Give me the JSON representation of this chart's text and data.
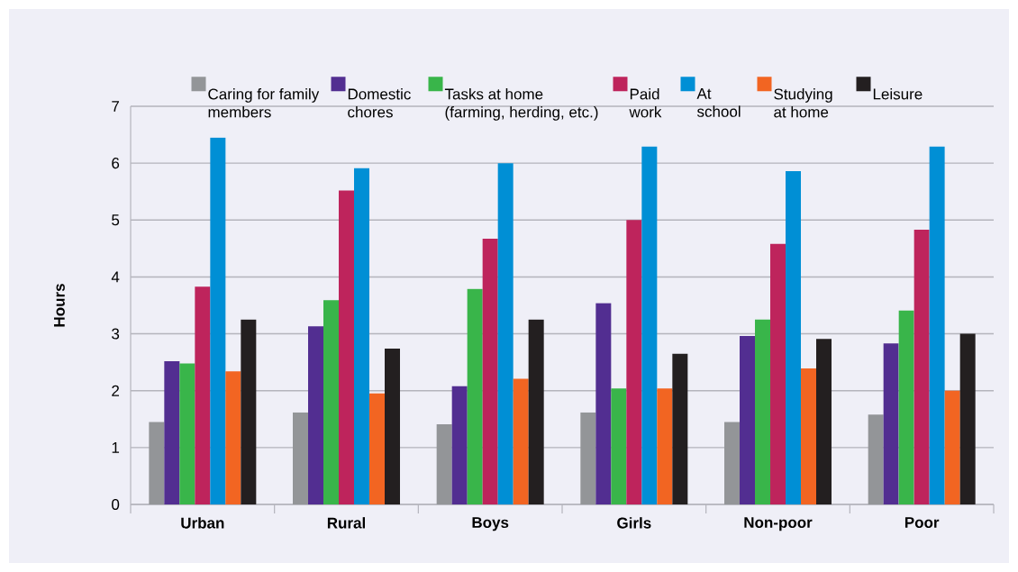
{
  "chart_data": {
    "type": "bar",
    "ylabel": "Hours",
    "categories": [
      "Urban",
      "Rural",
      "Boys",
      "Girls",
      "Non-poor",
      "Poor"
    ],
    "series": [
      {
        "name": "Caring for family members",
        "color": "#939598",
        "values": [
          1.45,
          1.62,
          1.41,
          1.62,
          1.45,
          1.58
        ]
      },
      {
        "name": "Domestic chores",
        "color": "#522e91",
        "values": [
          2.52,
          3.13,
          2.08,
          3.54,
          2.96,
          2.83
        ]
      },
      {
        "name": "Tasks at home (farming, herding, etc.)",
        "color": "#39b54a",
        "values": [
          2.48,
          3.59,
          3.79,
          2.04,
          3.25,
          3.41
        ]
      },
      {
        "name": "Paid work",
        "color": "#be245c",
        "values": [
          3.83,
          5.52,
          4.67,
          5.0,
          4.58,
          4.83
        ]
      },
      {
        "name": "At school",
        "color": "#008fd5",
        "values": [
          6.45,
          5.91,
          6.0,
          6.29,
          5.86,
          6.29
        ]
      },
      {
        "name": "Studying at home",
        "color": "#f26522",
        "values": [
          2.34,
          1.95,
          2.21,
          2.04,
          2.39,
          2.0
        ]
      },
      {
        "name": "Leisure",
        "color": "#231f20",
        "values": [
          3.25,
          2.74,
          3.25,
          2.65,
          2.91,
          3.0
        ]
      }
    ],
    "ylim": [
      0,
      7
    ],
    "yticks": [
      0,
      1,
      2,
      3,
      4,
      5,
      6,
      7
    ],
    "grid": "y",
    "legend": "top"
  }
}
